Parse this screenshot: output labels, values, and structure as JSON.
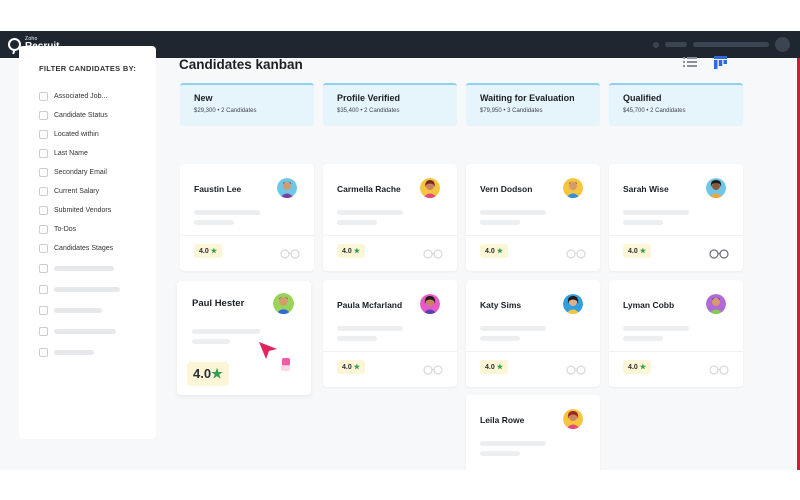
{
  "app": {
    "brand_small": "Zoho",
    "brand_name": "Recruit"
  },
  "filter": {
    "title": "FILTER CANDIDATES BY:",
    "items": [
      "Associated Job...",
      "Candidate Status",
      "Located within",
      "Last Name",
      "Secondary Email",
      "Current Salary",
      "Submited Vendors",
      "To-Dos",
      "Candidates Stages"
    ]
  },
  "page": {
    "title": "Candidates kanban"
  },
  "view": {
    "list_icon": "list-icon",
    "board_icon": "kanban-icon",
    "active": "kanban"
  },
  "colors": {
    "header_bg": "#e6f4fb",
    "header_border": "#8fd0ef",
    "star": "#2e9e4f",
    "rating_bg": "#fdf6d6",
    "cursor": "#e0245e",
    "accent": "#2f6bd8"
  },
  "columns": [
    {
      "name": "New",
      "meta": "$29,300   •   2 Candidates",
      "cards": [
        {
          "name": "Faustin Lee",
          "rating": "4.0"
        },
        {
          "name": "Paul Hester",
          "rating": "4.0"
        }
      ]
    },
    {
      "name": "Profile Verified",
      "meta": "$35,400   •   2 Candidates",
      "cards": [
        {
          "name": "Carmella Rache",
          "rating": "4.0"
        },
        {
          "name": "Paula Mcfarland",
          "rating": "4.0"
        }
      ]
    },
    {
      "name": "Waiting for Evaluation",
      "meta": "$79,950   •   3 Candidates",
      "cards": [
        {
          "name": "Vern Dodson",
          "rating": "4.0"
        },
        {
          "name": "Katy Sims",
          "rating": "4.0"
        },
        {
          "name": "Leila Rowe",
          "rating": ""
        }
      ]
    },
    {
      "name": "Qualified",
      "meta": "$45,700   •   2 Candidates",
      "cards": [
        {
          "name": "Sarah Wise",
          "rating": "4.0"
        },
        {
          "name": "Lyman Cobb",
          "rating": "4.0"
        }
      ]
    }
  ],
  "star_glyph": "★"
}
